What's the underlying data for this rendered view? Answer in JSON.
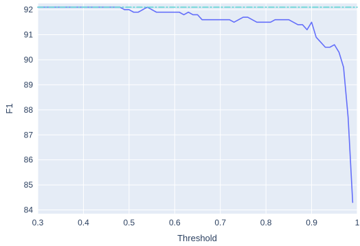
{
  "chart_data": {
    "type": "line",
    "xlabel": "Threshold",
    "ylabel": "F1",
    "xlim": [
      0.3,
      1.0
    ],
    "ylim": [
      83.85,
      92.25
    ],
    "x_ticks": [
      "0.3",
      "0.4",
      "0.5",
      "0.6",
      "0.7",
      "0.8",
      "0.9",
      "1"
    ],
    "y_ticks": [
      "84",
      "85",
      "86",
      "87",
      "88",
      "89",
      "90",
      "91",
      "92"
    ],
    "grid": true,
    "legend": "none",
    "colors": {
      "plot_bg": "#e5ecf6",
      "grid": "#ffffff",
      "line": "#636efa",
      "reference": "#5fd3d3",
      "text": "#2a3f5f"
    },
    "series": [
      {
        "style": "solid",
        "x": [
          0.3,
          0.31,
          0.32,
          0.33,
          0.34,
          0.35,
          0.36,
          0.37,
          0.38,
          0.39,
          0.4,
          0.41,
          0.42,
          0.43,
          0.44,
          0.45,
          0.46,
          0.47,
          0.48,
          0.49,
          0.5,
          0.51,
          0.52,
          0.53,
          0.54,
          0.55,
          0.56,
          0.57,
          0.58,
          0.59,
          0.6,
          0.61,
          0.62,
          0.63,
          0.64,
          0.65,
          0.66,
          0.67,
          0.68,
          0.69,
          0.7,
          0.71,
          0.72,
          0.73,
          0.74,
          0.75,
          0.76,
          0.77,
          0.78,
          0.79,
          0.8,
          0.81,
          0.82,
          0.83,
          0.84,
          0.85,
          0.86,
          0.87,
          0.88,
          0.89,
          0.9,
          0.91,
          0.92,
          0.93,
          0.94,
          0.95,
          0.96,
          0.97,
          0.98,
          0.99
        ],
        "y": [
          92.1,
          92.1,
          92.1,
          92.1,
          92.1,
          92.1,
          92.1,
          92.1,
          92.1,
          92.1,
          92.1,
          92.1,
          92.1,
          92.1,
          92.1,
          92.1,
          92.1,
          92.1,
          92.1,
          92.0,
          92.0,
          91.9,
          91.9,
          92.0,
          92.1,
          92.0,
          91.9,
          91.9,
          91.9,
          91.9,
          91.9,
          91.9,
          91.8,
          91.9,
          91.8,
          91.8,
          91.6,
          91.6,
          91.6,
          91.6,
          91.6,
          91.6,
          91.6,
          91.5,
          91.6,
          91.7,
          91.7,
          91.6,
          91.5,
          91.5,
          91.5,
          91.5,
          91.6,
          91.6,
          91.6,
          91.6,
          91.5,
          91.4,
          91.4,
          91.2,
          91.5,
          90.9,
          90.7,
          90.5,
          90.5,
          90.6,
          90.3,
          89.7,
          87.7,
          84.3
        ]
      },
      {
        "style": "dashdot",
        "x": [
          0.3,
          1.0
        ],
        "y": [
          92.1,
          92.1
        ]
      }
    ]
  }
}
